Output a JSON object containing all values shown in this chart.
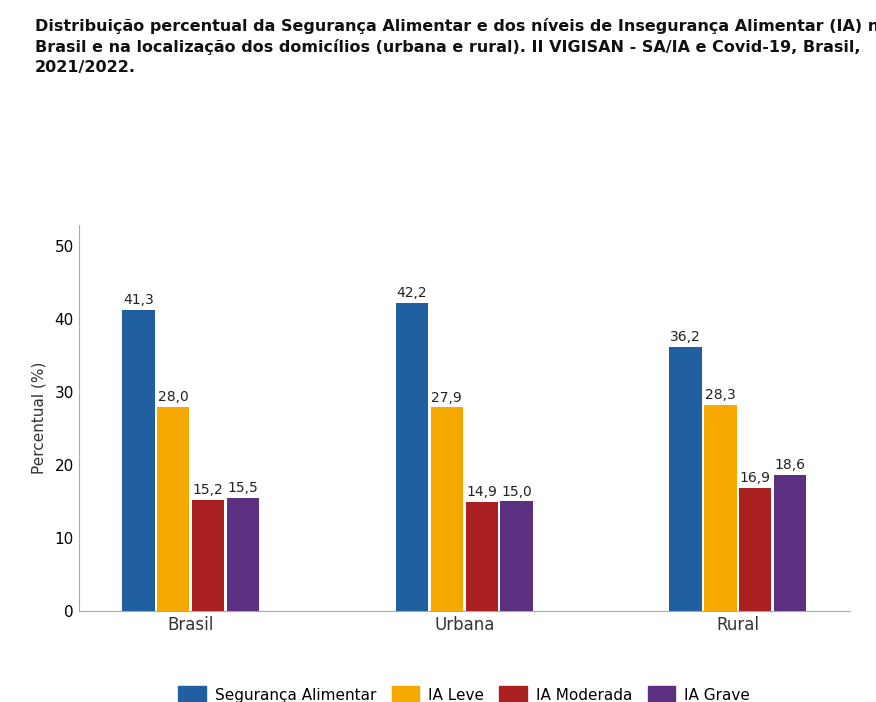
{
  "title_line1": "Distribuição percentual da Segurança Alimentar e dos níveis de Insegurança Alimentar (IA) no",
  "title_line2": "Brasil e na localização dos domicílios (urbana e rural). II VIGISAN - SA/IA e Covid-19, Brasil,",
  "title_line3": "2021/2022.",
  "categories": [
    "Brasil",
    "Urbana",
    "Rural"
  ],
  "series": {
    "Segurança Alimentar": [
      41.3,
      42.2,
      36.2
    ],
    "IA Leve": [
      28.0,
      27.9,
      28.3
    ],
    "IA Moderada": [
      15.2,
      14.9,
      16.9
    ],
    "IA Grave": [
      15.5,
      15.0,
      18.6
    ]
  },
  "colors": {
    "Segurança Alimentar": "#2160A0",
    "IA Leve": "#F5A800",
    "IA Moderada": "#AA2020",
    "IA Grave": "#5C3080"
  },
  "ylabel": "Percentual (%)",
  "ylim": [
    0,
    53
  ],
  "yticks": [
    0,
    10,
    20,
    30,
    40,
    50
  ],
  "bar_width": 0.13,
  "title_fontsize": 11.5,
  "label_fontsize": 11,
  "tick_fontsize": 11,
  "legend_fontsize": 11,
  "value_fontsize": 10,
  "background_color": "#FFFFFF"
}
